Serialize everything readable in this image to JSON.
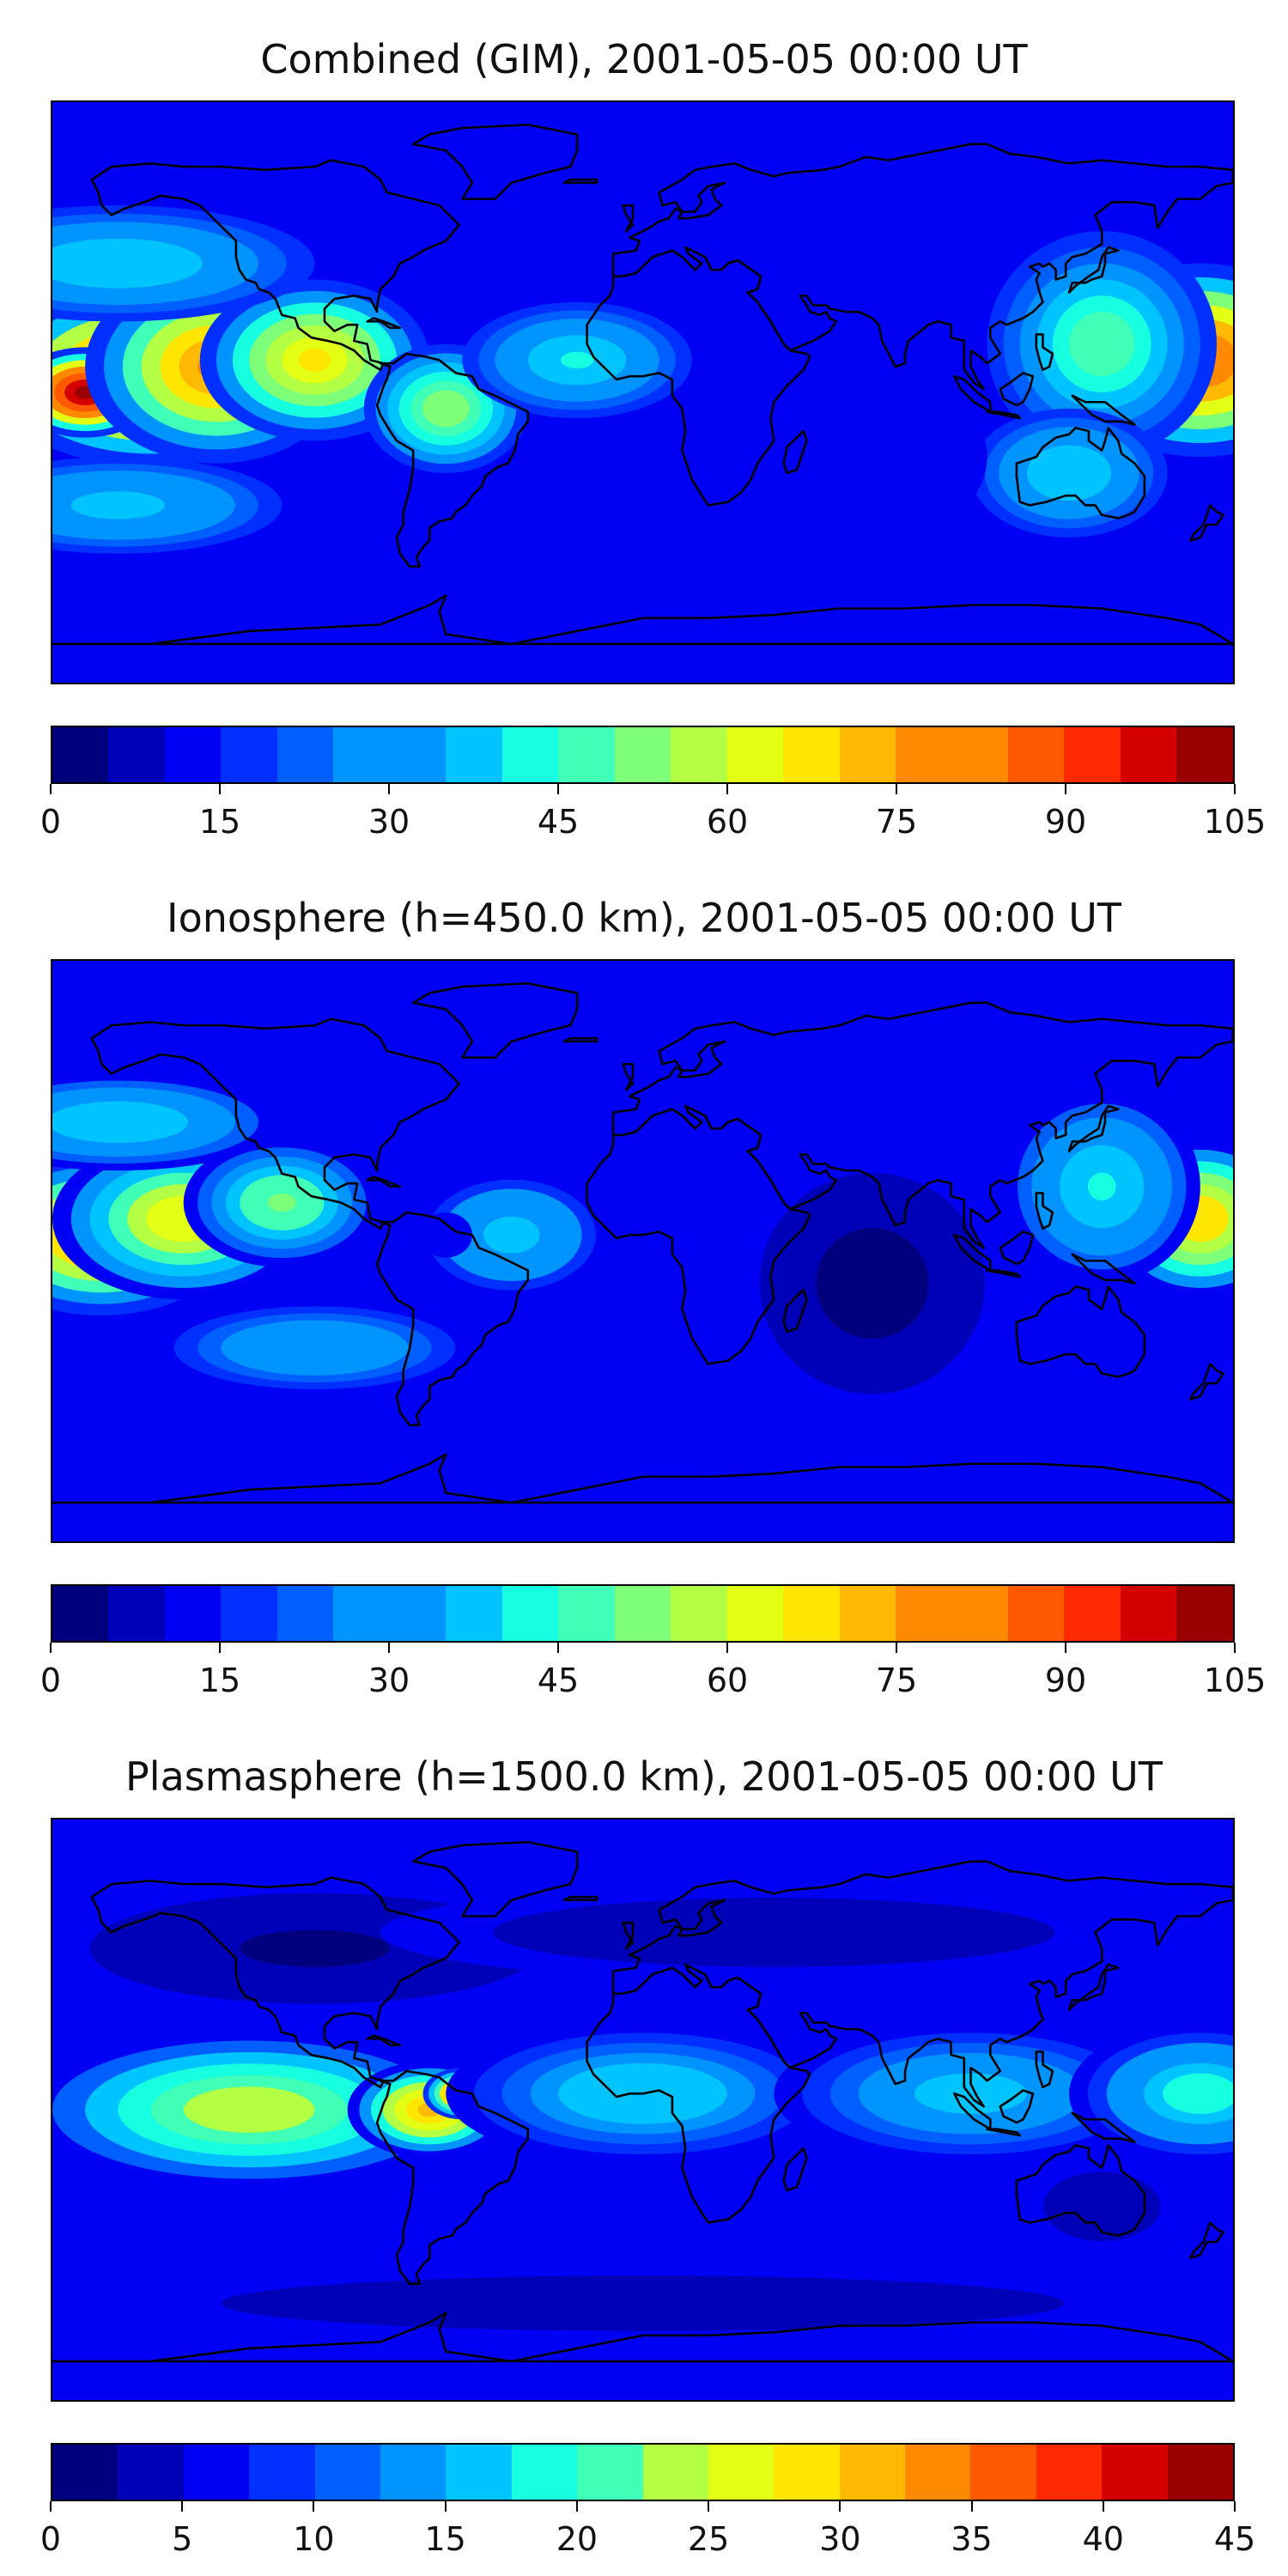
{
  "colormap": [
    "#00007f",
    "#0000b8",
    "#0000f5",
    "#0030ff",
    "#0060ff",
    "#0094ff",
    "#00c4ff",
    "#16ffe1",
    "#40ffb7",
    "#7dff7a",
    "#b3ff43",
    "#e3ff13",
    "#ffe600",
    "#ffb900",
    "#ff8900",
    "#ff5900",
    "#ff2900",
    "#d40000",
    "#990000"
  ],
  "panels": [
    {
      "title": "Combined (GIM), 2001-05-05 00:00 UT",
      "colorbar": {
        "min": 0,
        "max": 105,
        "levels": 21,
        "tick_values": [
          0,
          15,
          30,
          45,
          60,
          75,
          90,
          105
        ],
        "tick_labels": [
          "0",
          "15",
          "30",
          "45",
          "60",
          "75",
          "90",
          "105"
        ]
      },
      "field": {
        "background": 14,
        "blobs": [
          {
            "lon": -150,
            "lat": 5,
            "rx": 50,
            "ry": 28,
            "v": 95
          },
          {
            "lon": -170,
            "lat": 0,
            "rx": 22,
            "ry": 14,
            "v": 105
          },
          {
            "lon": -130,
            "lat": 8,
            "rx": 40,
            "ry": 30,
            "v": 80
          },
          {
            "lon": -100,
            "lat": 10,
            "rx": 35,
            "ry": 25,
            "v": 68
          },
          {
            "lon": -60,
            "lat": -5,
            "rx": 25,
            "ry": 20,
            "v": 55
          },
          {
            "lon": -20,
            "lat": 10,
            "rx": 35,
            "ry": 18,
            "v": 42
          },
          {
            "lon": 170,
            "lat": 10,
            "rx": 40,
            "ry": 30,
            "v": 85
          },
          {
            "lon": 140,
            "lat": 15,
            "rx": 35,
            "ry": 35,
            "v": 48
          },
          {
            "lon": 130,
            "lat": -25,
            "rx": 30,
            "ry": 20,
            "v": 40
          },
          {
            "lon": -160,
            "lat": 40,
            "rx": 60,
            "ry": 18,
            "v": 40
          },
          {
            "lon": -160,
            "lat": -35,
            "rx": 50,
            "ry": 15,
            "v": 38
          },
          {
            "lon": 60,
            "lat": -20,
            "rx": 45,
            "ry": 30,
            "v": 12
          }
        ]
      }
    },
    {
      "title": "Ionosphere  (h=450.0 km), 2001-05-05 00:00 UT",
      "colorbar": {
        "min": 0,
        "max": 105,
        "levels": 21,
        "tick_values": [
          0,
          15,
          30,
          45,
          60,
          75,
          90,
          105
        ],
        "tick_labels": [
          "0",
          "15",
          "30",
          "45",
          "60",
          "75",
          "90",
          "105"
        ]
      },
      "field": {
        "background": 12,
        "blobs": [
          {
            "lon": -165,
            "lat": 5,
            "rx": 40,
            "ry": 25,
            "v": 78
          },
          {
            "lon": -140,
            "lat": 10,
            "rx": 40,
            "ry": 25,
            "v": 65
          },
          {
            "lon": -110,
            "lat": 15,
            "rx": 30,
            "ry": 20,
            "v": 52
          },
          {
            "lon": -40,
            "lat": 5,
            "rx": 30,
            "ry": 20,
            "v": 38
          },
          {
            "lon": -60,
            "lat": 5,
            "rx": 8,
            "ry": 7,
            "v": 15
          },
          {
            "lon": 170,
            "lat": 10,
            "rx": 30,
            "ry": 25,
            "v": 70
          },
          {
            "lon": 140,
            "lat": 20,
            "rx": 30,
            "ry": 30,
            "v": 42
          },
          {
            "lon": -160,
            "lat": 40,
            "rx": 50,
            "ry": 15,
            "v": 40
          },
          {
            "lon": -100,
            "lat": -30,
            "rx": 50,
            "ry": 15,
            "v": 35
          },
          {
            "lon": 70,
            "lat": -10,
            "rx": 40,
            "ry": 40,
            "v": 3
          }
        ]
      }
    },
    {
      "title": "Plasmasphere (h=1500.0 km), 2001-05-05 00:00 UT",
      "colorbar": {
        "min": 0,
        "max": 45,
        "levels": 18,
        "tick_values": [
          0,
          5,
          10,
          15,
          20,
          25,
          30,
          35,
          40,
          45
        ],
        "tick_labels": [
          "0",
          "5",
          "10",
          "15",
          "20",
          "25",
          "30",
          "35",
          "40",
          "45"
        ]
      },
      "field": {
        "background": 6,
        "blobs": [
          {
            "lon": -120,
            "lat": 0,
            "rx": 70,
            "ry": 25,
            "v": 24
          },
          {
            "lon": -65,
            "lat": 0,
            "rx": 25,
            "ry": 15,
            "v": 32
          },
          {
            "lon": -55,
            "lat": 5,
            "rx": 12,
            "ry": 8,
            "v": 38
          },
          {
            "lon": 0,
            "lat": 5,
            "rx": 60,
            "ry": 22,
            "v": 17
          },
          {
            "lon": 100,
            "lat": 5,
            "rx": 60,
            "ry": 22,
            "v": 16
          },
          {
            "lon": 170,
            "lat": 5,
            "rx": 40,
            "ry": 22,
            "v": 19
          },
          {
            "lon": -100,
            "lat": 50,
            "rx": 80,
            "ry": 20,
            "v": 2
          },
          {
            "lon": 40,
            "lat": 55,
            "rx": 120,
            "ry": 15,
            "v": 3
          },
          {
            "lon": 0,
            "lat": -60,
            "rx": 180,
            "ry": 12,
            "v": 3
          },
          {
            "lon": 140,
            "lat": -30,
            "rx": 25,
            "ry": 15,
            "v": 4
          }
        ]
      }
    }
  ]
}
